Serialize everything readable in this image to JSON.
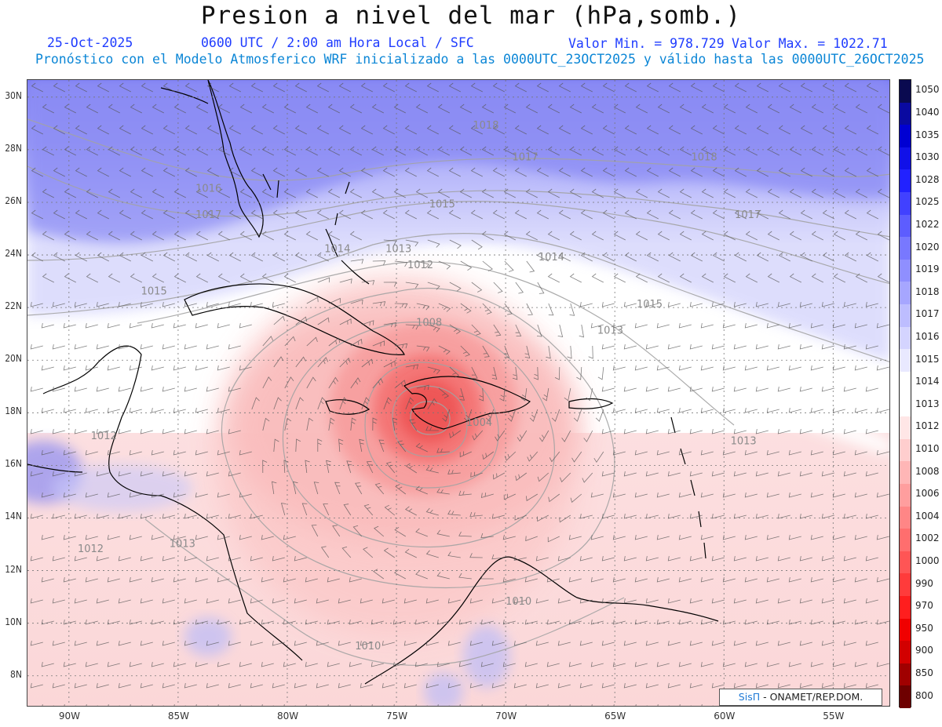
{
  "header": {
    "title": "Presion a nivel del mar (hPa,somb.)",
    "date": "25-Oct-2025",
    "time": "0600 UTC / 2:00 am Hora Local / SFC",
    "min_value": "Valor Min. = 978.729",
    "max_value": "Valor Max. = 1022.71",
    "forecast_info": "Pronóstico con el Modelo Atmosferico WRF inicializado a las 0000UTC_23OCT2025 y válido hasta las  0000UTC_26OCT2025"
  },
  "axes": {
    "lat_labels": [
      "30N",
      "28N",
      "26N",
      "24N",
      "22N",
      "20N",
      "18N",
      "16N",
      "14N",
      "12N",
      "10N",
      "8N"
    ],
    "lon_labels": [
      "90W",
      "85W",
      "80W",
      "75W",
      "70W",
      "65W",
      "60W",
      "55W"
    ]
  },
  "colorbar": {
    "labels": [
      "1050",
      "1040",
      "1035",
      "1030",
      "1028",
      "1025",
      "1022",
      "1020",
      "1019",
      "1018",
      "1017",
      "1016",
      "1015",
      "1014",
      "1013",
      "1012",
      "1010",
      "1008",
      "1006",
      "1004",
      "1002",
      "1000",
      "990",
      "970",
      "950",
      "900",
      "850",
      "800"
    ],
    "colors": [
      "#0a0a50",
      "#0a0aa0",
      "#0000d2",
      "#1111e8",
      "#2222ff",
      "#4141ff",
      "#5d5dff",
      "#7878ff",
      "#8f8fff",
      "#a6a6ff",
      "#bdbdff",
      "#d4d4ff",
      "#e9e9ff",
      "#ffffff",
      "#ffffff",
      "#ffe6e6",
      "#ffcece",
      "#ffb6b6",
      "#ff9e9e",
      "#ff8686",
      "#ff6e6e",
      "#ff5555",
      "#ff3b3b",
      "#ff1e1e",
      "#f00000",
      "#d20000",
      "#a00000",
      "#6e0000"
    ]
  },
  "contour_labels": [
    {
      "text": "1018",
      "lon": -71.5,
      "lat": 28.8
    },
    {
      "text": "1017",
      "lon": -69.7,
      "lat": 27.6
    },
    {
      "text": "1018",
      "lon": -61.5,
      "lat": 27.6
    },
    {
      "text": "1017",
      "lon": -59.5,
      "lat": 25.4
    },
    {
      "text": "1016",
      "lon": -84.2,
      "lat": 26.4
    },
    {
      "text": "1017",
      "lon": -84.2,
      "lat": 25.4
    },
    {
      "text": "1015",
      "lon": -73.5,
      "lat": 25.8
    },
    {
      "text": "1014",
      "lon": -78.3,
      "lat": 24.1
    },
    {
      "text": "1013",
      "lon": -75.5,
      "lat": 24.1
    },
    {
      "text": "1012",
      "lon": -74.5,
      "lat": 23.5
    },
    {
      "text": "1014",
      "lon": -68.5,
      "lat": 23.8
    },
    {
      "text": "1015",
      "lon": -86.7,
      "lat": 22.5
    },
    {
      "text": "1015",
      "lon": -64.0,
      "lat": 22.0
    },
    {
      "text": "1013",
      "lon": -65.8,
      "lat": 21.0
    },
    {
      "text": "1008",
      "lon": -74.1,
      "lat": 21.3
    },
    {
      "text": "1004",
      "lon": -71.8,
      "lat": 17.5
    },
    {
      "text": "1013",
      "lon": -59.7,
      "lat": 16.8
    },
    {
      "text": "1012",
      "lon": -89.6,
      "lat": 12.7
    },
    {
      "text": "1013",
      "lon": -85.4,
      "lat": 12.9
    },
    {
      "text": "1010",
      "lon": -70.0,
      "lat": 10.7
    },
    {
      "text": "1010",
      "lon": -76.9,
      "lat": 9.0
    },
    {
      "text": "1012",
      "lon": -89.0,
      "lat": 17.0
    }
  ],
  "legend_credit": {
    "sis": "SisΠ",
    "text": " - ONAMET/REP.DOM."
  },
  "layer_colors": {
    "high_pressure": "#6b6bf0",
    "neutral": "#ffffff",
    "low_pressure": "#f26060",
    "cyclone_center": "#ef4848",
    "coastline": "#000000",
    "contour": "#9a9a9a"
  }
}
